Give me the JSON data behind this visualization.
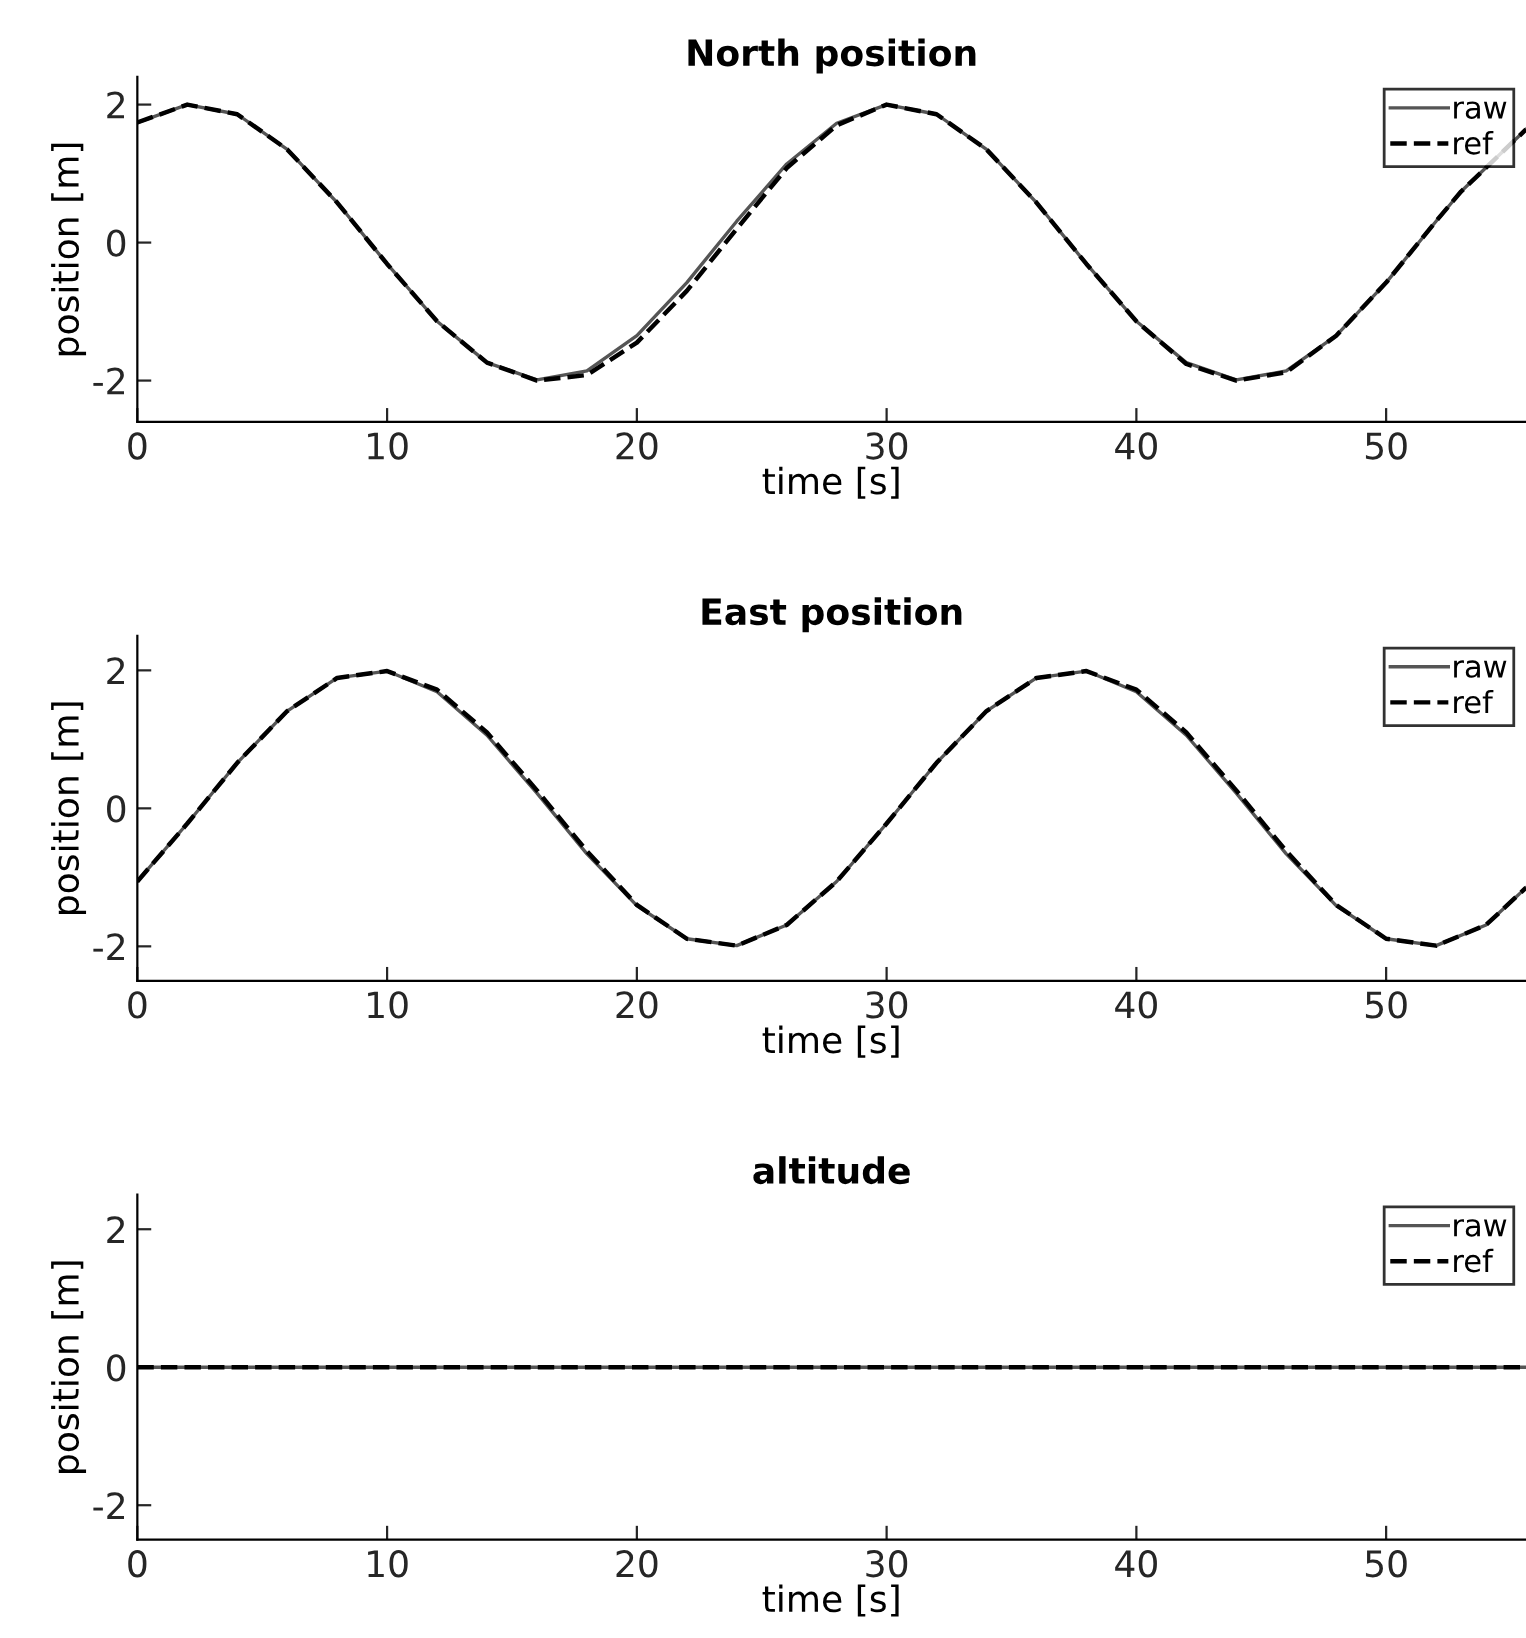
{
  "chart_data": [
    {
      "type": "line",
      "title": "North position",
      "xlabel": "time [s]",
      "ylabel": "position [m]",
      "xlim": [
        0,
        55.6
      ],
      "xticks": [
        0,
        10,
        20,
        30,
        40,
        50
      ],
      "ylim": [
        -2.6,
        2.4
      ],
      "yticks": [
        -2,
        0,
        2
      ],
      "grid": false,
      "legend": "top right",
      "x": [
        0,
        2,
        4,
        6,
        8,
        10,
        12,
        14,
        16,
        18,
        20,
        22,
        24,
        26,
        28,
        30,
        32,
        34,
        36,
        38,
        40,
        42,
        44,
        46,
        48,
        50,
        52,
        53,
        55.6
      ],
      "series": [
        {
          "name": "raw",
          "color": "#555555",
          "line_style": "solid",
          "values": [
            1.74,
            2.0,
            1.86,
            1.35,
            0.58,
            -0.31,
            -1.14,
            -1.74,
            -1.99,
            -1.86,
            -1.35,
            -0.58,
            0.31,
            1.14,
            1.73,
            2.0,
            1.86,
            1.35,
            0.58,
            -0.31,
            -1.14,
            -1.74,
            -1.99,
            -1.86,
            -1.35,
            -0.58,
            0.31,
            0.74,
            1.64
          ]
        },
        {
          "name": "ref",
          "color": "#000000",
          "line_style": "dashed",
          "values": [
            1.74,
            2.0,
            1.86,
            1.35,
            0.58,
            -0.31,
            -1.14,
            -1.74,
            -2.0,
            -1.92,
            -1.45,
            -0.7,
            0.2,
            1.08,
            1.7,
            2.0,
            1.86,
            1.35,
            0.58,
            -0.31,
            -1.14,
            -1.76,
            -2.0,
            -1.88,
            -1.35,
            -0.58,
            0.31,
            0.74,
            1.64
          ]
        }
      ]
    },
    {
      "type": "line",
      "title": "East position",
      "xlabel": "time [s]",
      "ylabel": "position [m]",
      "xlim": [
        0,
        55.6
      ],
      "xticks": [
        0,
        10,
        20,
        30,
        40,
        50
      ],
      "ylim": [
        -2.5,
        2.5
      ],
      "yticks": [
        -2,
        0,
        2
      ],
      "grid": false,
      "legend": "top right",
      "x": [
        0,
        2,
        4,
        6,
        8,
        10,
        12,
        14,
        16,
        18,
        20,
        22,
        24,
        26,
        28,
        30,
        32,
        34,
        36,
        38,
        40,
        42,
        44,
        46,
        48,
        50,
        52,
        54,
        55.6
      ],
      "series": [
        {
          "name": "raw",
          "color": "#555555",
          "line_style": "solid",
          "values": [
            -1.06,
            -0.22,
            0.66,
            1.41,
            1.89,
            1.99,
            1.69,
            1.06,
            0.22,
            -0.66,
            -1.41,
            -1.89,
            -1.99,
            -1.69,
            -1.06,
            -0.22,
            0.66,
            1.41,
            1.89,
            1.99,
            1.69,
            1.06,
            0.22,
            -0.66,
            -1.41,
            -1.89,
            -1.99,
            -1.69,
            -1.15
          ]
        },
        {
          "name": "ref",
          "color": "#000000",
          "line_style": "dashed",
          "values": [
            -1.06,
            -0.22,
            0.66,
            1.41,
            1.89,
            1.99,
            1.72,
            1.1,
            0.26,
            -0.62,
            -1.4,
            -1.89,
            -1.99,
            -1.69,
            -1.06,
            -0.22,
            0.66,
            1.41,
            1.89,
            1.99,
            1.72,
            1.1,
            0.26,
            -0.62,
            -1.4,
            -1.89,
            -1.99,
            -1.69,
            -1.15
          ]
        }
      ]
    },
    {
      "type": "line",
      "title": "altitude",
      "xlabel": "time [s]",
      "ylabel": "position [m]",
      "xlim": [
        0,
        55.6
      ],
      "xticks": [
        0,
        10,
        20,
        30,
        40,
        50
      ],
      "ylim": [
        -2.5,
        2.5
      ],
      "yticks": [
        -2,
        0,
        2
      ],
      "grid": false,
      "legend": "top right",
      "x": [
        0,
        55.6
      ],
      "series": [
        {
          "name": "raw",
          "color": "#555555",
          "line_style": "solid",
          "values": [
            0,
            0
          ]
        },
        {
          "name": "ref",
          "color": "#000000",
          "line_style": "dashed",
          "values": [
            0,
            0
          ]
        }
      ]
    }
  ]
}
